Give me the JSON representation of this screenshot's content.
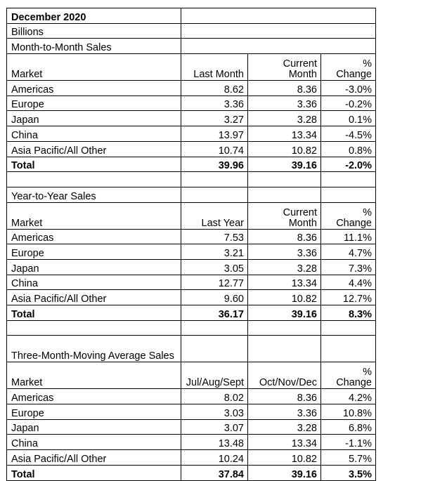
{
  "title": "December 2020",
  "units": "Billions",
  "sections": [
    {
      "heading": "Month-to-Month Sales",
      "columns": [
        "Market",
        "Last Month",
        "Current Month",
        "% Change"
      ],
      "rows": [
        [
          "Americas",
          "8.62",
          "8.36",
          "-3.0%"
        ],
        [
          "Europe",
          "3.36",
          "3.36",
          "-0.2%"
        ],
        [
          "Japan",
          "3.27",
          "3.28",
          "0.1%"
        ],
        [
          "China",
          "13.97",
          "13.34",
          "-4.5%"
        ],
        [
          "Asia Pacific/All Other",
          "10.74",
          "10.82",
          "0.8%"
        ]
      ],
      "total": [
        "Total",
        "39.96",
        "39.16",
        "-2.0%"
      ]
    },
    {
      "heading": "Year-to-Year Sales",
      "columns": [
        "Market",
        "Last Year",
        "Current Month",
        "% Change"
      ],
      "rows": [
        [
          "Americas",
          "7.53",
          "8.36",
          "11.1%"
        ],
        [
          "Europe",
          "3.21",
          "3.36",
          "4.7%"
        ],
        [
          "Japan",
          "3.05",
          "3.28",
          "7.3%"
        ],
        [
          "China",
          "12.77",
          "13.34",
          "4.4%"
        ],
        [
          "Asia Pacific/All Other",
          "9.60",
          "10.82",
          "12.7%"
        ]
      ],
      "total": [
        "Total",
        "36.17",
        "39.16",
        "8.3%"
      ]
    },
    {
      "heading": "Three-Month-Moving Average Sales",
      "columns": [
        "Market",
        "Jul/Aug/Sept",
        "Oct/Nov/Dec",
        "% Change"
      ],
      "rows": [
        [
          "Americas",
          "8.02",
          "8.36",
          "4.2%"
        ],
        [
          "Europe",
          "3.03",
          "3.36",
          "10.8%"
        ],
        [
          "Japan",
          "3.07",
          "3.28",
          "6.8%"
        ],
        [
          "China",
          "13.48",
          "13.34",
          "-1.1%"
        ],
        [
          "Asia Pacific/All Other",
          "10.24",
          "10.82",
          "5.7%"
        ]
      ],
      "total": [
        "Total",
        "37.84",
        "39.16",
        "3.5%"
      ]
    }
  ]
}
